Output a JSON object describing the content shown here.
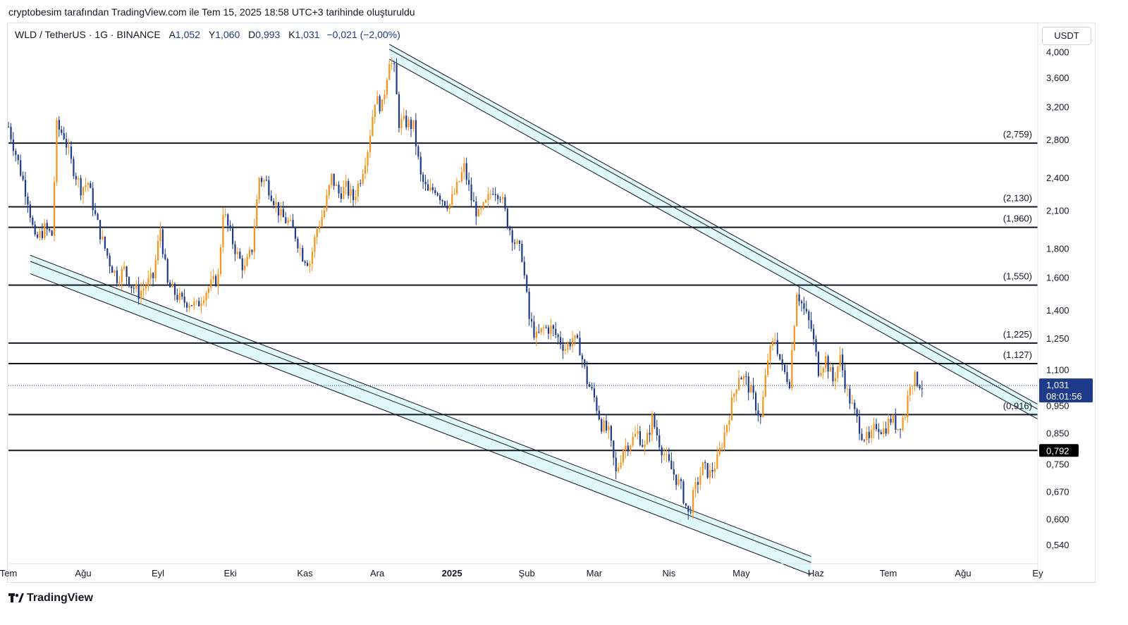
{
  "header": {
    "credit": "cryptobesim tarafından TradingView.com ile Tem 15, 2025 18:58 UTC+3 tarihinde oluşturuldu"
  },
  "legend": {
    "symbol": "WLD / TetherUS · 1G · BINANCE",
    "open_label": "A",
    "open": "1,052",
    "high_label": "Y",
    "high": "1,060",
    "low_label": "D",
    "low": "0,993",
    "close_label": "K",
    "close": "1,031",
    "change": "−0,021 (−2,00%)"
  },
  "unit_button": "USDT",
  "footer": {
    "brand": "TradingView"
  },
  "colors": {
    "up": "#f7931a",
    "down": "#1e3a8a",
    "channel_fill": "#e0f7fa",
    "price_badge": "#1e3a8a",
    "level_badge": "#000000"
  },
  "chart_data": {
    "type": "candlestick",
    "y_scale": "log",
    "ylim": [
      0.5,
      4.4
    ],
    "y_ticks": [
      "4,000",
      "3,600",
      "3,200",
      "2,800",
      "2,400",
      "2,100",
      "1,800",
      "1,600",
      "1,400",
      "1,250",
      "1,100",
      "0,950",
      "0,850",
      "0,750",
      "0,670",
      "0,600",
      "0,540"
    ],
    "y_tick_values": [
      4.0,
      3.6,
      3.2,
      2.8,
      2.4,
      2.1,
      1.8,
      1.6,
      1.4,
      1.25,
      1.1,
      0.95,
      0.85,
      0.75,
      0.67,
      0.6,
      0.54
    ],
    "x_ticks": [
      "Tem",
      "Ağu",
      "Eyl",
      "Eki",
      "Kas",
      "Ara",
      "2025",
      "Şub",
      "Mar",
      "Nis",
      "May",
      "Haz",
      "Tem",
      "Ağu",
      "Ey"
    ],
    "x_tick_dates": [
      "2024-07-01",
      "2024-08-01",
      "2024-09-01",
      "2024-10-01",
      "2024-11-01",
      "2024-12-01",
      "2025-01-01",
      "2025-02-01",
      "2025-03-01",
      "2025-04-01",
      "2025-05-01",
      "2025-06-01",
      "2025-07-01",
      "2025-08-01",
      "2025-09-01"
    ],
    "x_range": [
      "2024-07-01",
      "2025-09-01"
    ],
    "levels": [
      {
        "label": "(2,759)",
        "value": 2.759
      },
      {
        "label": "(2,130)",
        "value": 2.13
      },
      {
        "label": "(1,960)",
        "value": 1.96
      },
      {
        "label": "(1,550)",
        "value": 1.55
      },
      {
        "label": "(1,225)",
        "value": 1.225
      },
      {
        "label": "(1,127)",
        "value": 1.127
      },
      {
        "label": "(0,916)",
        "value": 0.916
      },
      {
        "label": "0,792",
        "value": 0.792
      }
    ],
    "current_price": {
      "value": 1.031,
      "label": "1,031",
      "countdown": "08:01:56"
    },
    "channels": [
      {
        "name": "",
        "start": {
          "date": "2024-07-10",
          "price": 1.75
        },
        "end": {
          "date": "2025-05-30",
          "price": 0.515
        },
        "width_log": 0.075,
        "mid": true
      },
      {
        "name": "",
        "start": {
          "date": "2024-12-06",
          "price": 4.12
        },
        "end": {
          "date": "2025-09-01",
          "price": 0.955
        },
        "width_log": 0.06,
        "mid": true
      }
    ],
    "price_path": [
      [
        "2024-07-01",
        2.95
      ],
      [
        "2024-07-05",
        2.55
      ],
      [
        "2024-07-09",
        2.2
      ],
      [
        "2024-07-12",
        1.85
      ],
      [
        "2024-07-16",
        1.95
      ],
      [
        "2024-07-19",
        1.9
      ],
      [
        "2024-07-21",
        2.95
      ],
      [
        "2024-07-24",
        2.85
      ],
      [
        "2024-07-27",
        2.55
      ],
      [
        "2024-07-31",
        2.3
      ],
      [
        "2024-08-03",
        2.35
      ],
      [
        "2024-08-06",
        2.05
      ],
      [
        "2024-08-09",
        1.85
      ],
      [
        "2024-08-12",
        1.7
      ],
      [
        "2024-08-15",
        1.6
      ],
      [
        "2024-08-18",
        1.65
      ],
      [
        "2024-08-21",
        1.55
      ],
      [
        "2024-08-24",
        1.5
      ],
      [
        "2024-08-27",
        1.55
      ],
      [
        "2024-08-30",
        1.6
      ],
      [
        "2024-09-02",
        1.95
      ],
      [
        "2024-09-05",
        1.55
      ],
      [
        "2024-09-08",
        1.5
      ],
      [
        "2024-09-11",
        1.45
      ],
      [
        "2024-09-14",
        1.45
      ],
      [
        "2024-09-17",
        1.42
      ],
      [
        "2024-09-20",
        1.5
      ],
      [
        "2024-09-23",
        1.55
      ],
      [
        "2024-09-26",
        1.6
      ],
      [
        "2024-09-28",
        2.1
      ],
      [
        "2024-10-01",
        1.9
      ],
      [
        "2024-10-04",
        1.75
      ],
      [
        "2024-10-07",
        1.65
      ],
      [
        "2024-10-10",
        1.8
      ],
      [
        "2024-10-13",
        2.4
      ],
      [
        "2024-10-16",
        2.35
      ],
      [
        "2024-10-19",
        2.2
      ],
      [
        "2024-10-22",
        2.05
      ],
      [
        "2024-10-25",
        2.0
      ],
      [
        "2024-10-28",
        1.9
      ],
      [
        "2024-10-31",
        1.75
      ],
      [
        "2024-11-03",
        1.7
      ],
      [
        "2024-11-06",
        1.95
      ],
      [
        "2024-11-09",
        2.1
      ],
      [
        "2024-11-12",
        2.4
      ],
      [
        "2024-11-15",
        2.25
      ],
      [
        "2024-11-18",
        2.3
      ],
      [
        "2024-11-21",
        2.2
      ],
      [
        "2024-11-24",
        2.4
      ],
      [
        "2024-11-27",
        2.7
      ],
      [
        "2024-11-30",
        3.3
      ],
      [
        "2024-12-03",
        3.2
      ],
      [
        "2024-12-06",
        3.9
      ],
      [
        "2024-12-08",
        3.7
      ],
      [
        "2024-12-10",
        3.0
      ],
      [
        "2024-12-13",
        3.0
      ],
      [
        "2024-12-16",
        2.95
      ],
      [
        "2024-12-19",
        2.4
      ],
      [
        "2024-12-22",
        2.25
      ],
      [
        "2024-12-25",
        2.3
      ],
      [
        "2024-12-28",
        2.2
      ],
      [
        "2024-12-31",
        2.15
      ],
      [
        "2025-01-03",
        2.3
      ],
      [
        "2025-01-06",
        2.5
      ],
      [
        "2025-01-09",
        2.2
      ],
      [
        "2025-01-12",
        2.05
      ],
      [
        "2025-01-15",
        2.15
      ],
      [
        "2025-01-18",
        2.3
      ],
      [
        "2025-01-21",
        2.25
      ],
      [
        "2025-01-24",
        2.0
      ],
      [
        "2025-01-27",
        1.85
      ],
      [
        "2025-01-30",
        1.75
      ],
      [
        "2025-02-02",
        1.35
      ],
      [
        "2025-02-05",
        1.25
      ],
      [
        "2025-02-08",
        1.3
      ],
      [
        "2025-02-11",
        1.3
      ],
      [
        "2025-02-14",
        1.25
      ],
      [
        "2025-02-17",
        1.2
      ],
      [
        "2025-02-20",
        1.25
      ],
      [
        "2025-02-23",
        1.2
      ],
      [
        "2025-02-26",
        1.05
      ],
      [
        "2025-03-01",
        0.98
      ],
      [
        "2025-03-04",
        0.88
      ],
      [
        "2025-03-07",
        0.85
      ],
      [
        "2025-03-10",
        0.72
      ],
      [
        "2025-03-13",
        0.8
      ],
      [
        "2025-03-16",
        0.82
      ],
      [
        "2025-03-19",
        0.85
      ],
      [
        "2025-03-22",
        0.8
      ],
      [
        "2025-03-25",
        0.9
      ],
      [
        "2025-03-28",
        0.82
      ],
      [
        "2025-03-31",
        0.76
      ],
      [
        "2025-04-03",
        0.72
      ],
      [
        "2025-04-06",
        0.68
      ],
      [
        "2025-04-09",
        0.61
      ],
      [
        "2025-04-12",
        0.68
      ],
      [
        "2025-04-15",
        0.74
      ],
      [
        "2025-04-18",
        0.72
      ],
      [
        "2025-04-21",
        0.76
      ],
      [
        "2025-04-24",
        0.85
      ],
      [
        "2025-04-27",
        0.96
      ],
      [
        "2025-04-30",
        1.08
      ],
      [
        "2025-05-03",
        1.05
      ],
      [
        "2025-05-06",
        0.98
      ],
      [
        "2025-05-09",
        0.9
      ],
      [
        "2025-05-12",
        1.15
      ],
      [
        "2025-05-15",
        1.25
      ],
      [
        "2025-05-18",
        1.1
      ],
      [
        "2025-05-21",
        1.05
      ],
      [
        "2025-05-24",
        1.52
      ],
      [
        "2025-05-27",
        1.4
      ],
      [
        "2025-05-30",
        1.3
      ],
      [
        "2025-06-02",
        1.1
      ],
      [
        "2025-06-05",
        1.15
      ],
      [
        "2025-06-08",
        1.05
      ],
      [
        "2025-06-11",
        1.15
      ],
      [
        "2025-06-14",
        1.0
      ],
      [
        "2025-06-17",
        0.92
      ],
      [
        "2025-06-20",
        0.85
      ],
      [
        "2025-06-23",
        0.82
      ],
      [
        "2025-06-26",
        0.88
      ],
      [
        "2025-06-29",
        0.86
      ],
      [
        "2025-07-02",
        0.9
      ],
      [
        "2025-07-05",
        0.87
      ],
      [
        "2025-07-08",
        0.92
      ],
      [
        "2025-07-10",
        1.05
      ],
      [
        "2025-07-12",
        1.06
      ],
      [
        "2025-07-15",
        1.031
      ]
    ]
  }
}
